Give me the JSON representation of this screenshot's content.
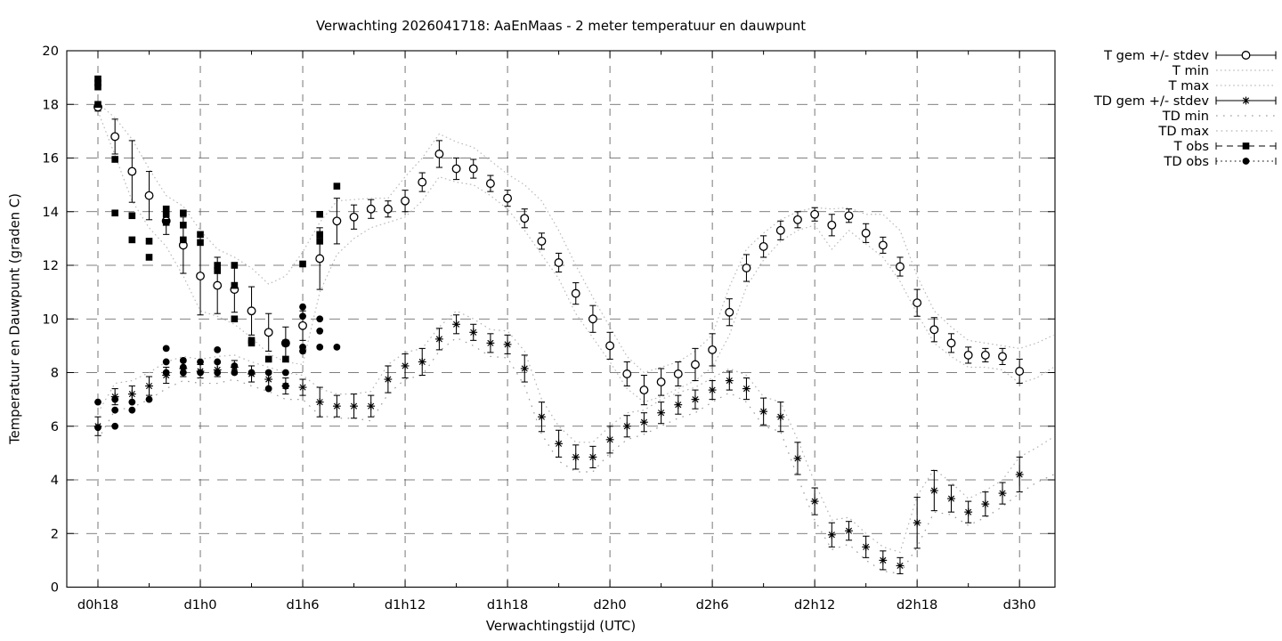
{
  "window": {
    "background": "#ffffff",
    "foreground": "#000000"
  },
  "chart_data": {
    "type": "line",
    "title": "Verwachting 2026041718: AaEnMaas - 2 meter temperatuur en dauwpunt",
    "xlabel": "Verwachtingstijd (UTC)",
    "ylabel": "Temperatuur en Dauwpunt (graden C)",
    "grid": true,
    "legend_position": "outside-right",
    "axes": {
      "x": {
        "range_t": [
          -1.83,
          56.0
        ],
        "ticks": [
          {
            "t": 0,
            "label": "d0h18"
          },
          {
            "t": 6,
            "label": "d1h0"
          },
          {
            "t": 12,
            "label": "d1h6"
          },
          {
            "t": 18,
            "label": "d1h12"
          },
          {
            "t": 24,
            "label": "d1h18"
          },
          {
            "t": 30,
            "label": "d2h0"
          },
          {
            "t": 36,
            "label": "d2h6"
          },
          {
            "t": 42,
            "label": "d2h12"
          },
          {
            "t": 48,
            "label": "d2h18"
          },
          {
            "t": 54,
            "label": "d3h0"
          }
        ],
        "minor_ticks": [
          3,
          9,
          15,
          21,
          27,
          33,
          39,
          45,
          51
        ]
      },
      "y": {
        "min": 0,
        "max": 20,
        "step": 2
      }
    },
    "series": [
      {
        "name": "T gem +/- stdev",
        "type": "errorbar",
        "marker": "circle-open",
        "color": "#000000",
        "t_start": 0,
        "dt": 1,
        "values": [
          17.9,
          16.8,
          15.5,
          14.6,
          13.65,
          12.75,
          11.6,
          11.25,
          11.1,
          10.3,
          9.5,
          9.1,
          9.75,
          12.25,
          13.65,
          13.8,
          14.1,
          14.1,
          14.4,
          15.1,
          16.15,
          15.6,
          15.6,
          15.05,
          14.5,
          13.75,
          12.9,
          12.1,
          10.95,
          10.0,
          9.0,
          7.95,
          7.35,
          7.65,
          7.95,
          8.3,
          8.85,
          10.25,
          11.9,
          12.7,
          13.3,
          13.7,
          13.9,
          13.5,
          13.85,
          13.2,
          12.75,
          11.95,
          10.6,
          9.6,
          9.1,
          8.65,
          8.65,
          8.6,
          8.05
        ],
        "stdev": [
          0.15,
          0.65,
          1.15,
          0.9,
          0.5,
          1.05,
          1.45,
          1.05,
          0.85,
          0.9,
          0.7,
          0.6,
          0.55,
          1.15,
          0.85,
          0.45,
          0.35,
          0.3,
          0.4,
          0.35,
          0.5,
          0.4,
          0.35,
          0.3,
          0.3,
          0.35,
          0.3,
          0.35,
          0.4,
          0.5,
          0.5,
          0.45,
          0.55,
          0.5,
          0.45,
          0.6,
          0.6,
          0.5,
          0.5,
          0.4,
          0.35,
          0.3,
          0.25,
          0.4,
          0.25,
          0.35,
          0.3,
          0.35,
          0.5,
          0.45,
          0.35,
          0.3,
          0.25,
          0.3,
          0.45
        ]
      },
      {
        "name": "T min",
        "type": "line",
        "color": "#bcbcbc",
        "dash": "1.6,3.2",
        "t_start": 0,
        "dt": 1,
        "values": [
          17.75,
          16.1,
          14.4,
          13.4,
          12.7,
          11.6,
          10.3,
          10.1,
          9.8,
          9.3,
          8.7,
          8.4,
          8.3,
          11.0,
          12.4,
          13.0,
          13.4,
          13.6,
          13.8,
          14.4,
          15.3,
          15.1,
          15.0,
          14.6,
          14.1,
          13.3,
          12.4,
          11.5,
          10.2,
          9.3,
          8.4,
          7.4,
          6.9,
          7.1,
          7.4,
          7.7,
          8.2,
          9.4,
          11.2,
          12.2,
          12.9,
          13.3,
          13.5,
          12.6,
          13.3,
          12.8,
          12.3,
          11.4,
          10.2,
          9.1,
          8.6,
          8.2,
          8.2,
          8.1,
          7.6,
          7.8,
          8.2
        ]
      },
      {
        "name": "T max",
        "type": "line",
        "color": "#bcbcbc",
        "dash": "1.6,3.2",
        "t_start": 0,
        "dt": 1,
        "values": [
          18.05,
          17.5,
          16.7,
          15.6,
          14.6,
          14.2,
          13.3,
          12.6,
          12.3,
          11.9,
          11.3,
          11.6,
          12.5,
          13.6,
          14.4,
          14.45,
          14.5,
          14.5,
          15.3,
          16.0,
          16.9,
          16.6,
          16.4,
          15.9,
          15.4,
          15.0,
          14.4,
          13.3,
          12.0,
          10.8,
          9.7,
          8.6,
          8.0,
          8.2,
          8.4,
          8.8,
          9.4,
          11.2,
          12.6,
          13.2,
          13.7,
          14.0,
          14.15,
          14.1,
          14.15,
          13.9,
          13.9,
          13.3,
          11.6,
          10.3,
          9.7,
          9.2,
          9.1,
          9.0,
          8.9,
          9.1,
          9.4
        ]
      },
      {
        "name": "TD gem +/- stdev",
        "type": "errorbar",
        "marker": "asterisk",
        "color": "#000000",
        "t_start": 0,
        "dt": 1,
        "values": [
          6.0,
          7.1,
          7.2,
          7.5,
          7.9,
          8.15,
          8.05,
          8.1,
          8.2,
          7.95,
          7.75,
          7.5,
          7.45,
          6.9,
          6.75,
          6.75,
          6.75,
          7.75,
          8.25,
          8.4,
          9.25,
          9.8,
          9.5,
          9.1,
          9.05,
          8.15,
          6.35,
          5.35,
          4.85,
          4.85,
          5.5,
          6.0,
          6.15,
          6.5,
          6.8,
          7.0,
          7.35,
          7.7,
          7.4,
          6.55,
          6.35,
          4.8,
          3.2,
          1.95,
          2.1,
          1.5,
          1.0,
          0.8,
          2.4,
          3.6,
          3.3,
          2.8,
          3.1,
          3.5,
          4.2
        ],
        "stdev": [
          0.35,
          0.3,
          0.3,
          0.35,
          0.3,
          0.3,
          0.25,
          0.25,
          0.25,
          0.3,
          0.3,
          0.3,
          0.3,
          0.55,
          0.4,
          0.45,
          0.4,
          0.5,
          0.45,
          0.5,
          0.4,
          0.35,
          0.3,
          0.35,
          0.35,
          0.5,
          0.55,
          0.5,
          0.45,
          0.4,
          0.5,
          0.4,
          0.35,
          0.4,
          0.35,
          0.35,
          0.35,
          0.35,
          0.4,
          0.5,
          0.55,
          0.6,
          0.5,
          0.45,
          0.35,
          0.4,
          0.35,
          0.3,
          0.95,
          0.75,
          0.5,
          0.4,
          0.45,
          0.4,
          0.65
        ]
      },
      {
        "name": "TD min",
        "type": "line",
        "color": "#9c9c9c",
        "dash": "1.6,6.4",
        "t_start": 0,
        "dt": 1,
        "values": [
          5.5,
          6.6,
          6.7,
          7.0,
          7.4,
          7.7,
          7.6,
          7.6,
          7.75,
          7.5,
          7.3,
          7.0,
          7.0,
          6.4,
          6.3,
          6.3,
          6.2,
          7.2,
          7.75,
          7.9,
          8.8,
          9.3,
          9.0,
          8.6,
          8.55,
          7.5,
          5.7,
          4.7,
          4.3,
          4.3,
          5.0,
          5.5,
          5.7,
          6.0,
          6.3,
          6.5,
          6.9,
          7.25,
          6.9,
          6.0,
          5.8,
          4.1,
          2.5,
          1.4,
          1.6,
          1.0,
          0.6,
          0.5,
          1.5,
          2.8,
          2.7,
          2.3,
          2.6,
          3.0,
          3.5,
          3.9,
          4.2
        ]
      },
      {
        "name": "TD max",
        "type": "line",
        "color": "#b4b4b4",
        "dash": "1.6,4",
        "t_start": 0,
        "dt": 1,
        "values": [
          6.5,
          7.6,
          7.7,
          8.0,
          8.4,
          8.6,
          8.5,
          8.6,
          8.65,
          8.4,
          8.2,
          8.0,
          7.9,
          7.4,
          7.2,
          7.2,
          7.3,
          8.3,
          8.75,
          8.9,
          9.7,
          10.3,
          10.0,
          9.6,
          9.55,
          8.8,
          7.0,
          6.0,
          5.4,
          5.4,
          6.0,
          6.5,
          6.6,
          7.0,
          7.25,
          7.45,
          7.8,
          8.15,
          7.9,
          7.1,
          6.9,
          5.5,
          3.9,
          2.5,
          2.6,
          2.0,
          1.5,
          1.3,
          3.4,
          4.4,
          3.9,
          3.3,
          3.6,
          4.0,
          4.85,
          5.2,
          5.6
        ]
      },
      {
        "name": "T obs",
        "type": "scatter",
        "marker": "square-filled",
        "color": "#000000",
        "legend_dash": "7,5",
        "points": [
          [
            0,
            18.95
          ],
          [
            0,
            18.8
          ],
          [
            0,
            18.65
          ],
          [
            0,
            18.0
          ],
          [
            1,
            15.95
          ],
          [
            1,
            13.95
          ],
          [
            2,
            13.85
          ],
          [
            2,
            12.95
          ],
          [
            3,
            12.9
          ],
          [
            3,
            12.3
          ],
          [
            4,
            14.1
          ],
          [
            4,
            13.9
          ],
          [
            4,
            13.6
          ],
          [
            5,
            13.95
          ],
          [
            5,
            13.5
          ],
          [
            5,
            12.95
          ],
          [
            6,
            13.15
          ],
          [
            6,
            12.85
          ],
          [
            7,
            12.0
          ],
          [
            7,
            11.8
          ],
          [
            8,
            12.0
          ],
          [
            8,
            11.25
          ],
          [
            8,
            10.0
          ],
          [
            9,
            9.2
          ],
          [
            9,
            9.1
          ],
          [
            10,
            8.5
          ],
          [
            11,
            9.1
          ],
          [
            11,
            8.5
          ],
          [
            12,
            12.05
          ],
          [
            13,
            13.9
          ],
          [
            13,
            13.15
          ],
          [
            13,
            12.9
          ],
          [
            14,
            14.95
          ]
        ]
      },
      {
        "name": "TD obs",
        "type": "scatter",
        "marker": "circle-filled",
        "color": "#000000",
        "legend_dash": "1.6,3.6",
        "points": [
          [
            0,
            6.9
          ],
          [
            0,
            5.95
          ],
          [
            1,
            7.0
          ],
          [
            1,
            6.6
          ],
          [
            1,
            6.0
          ],
          [
            2,
            6.9
          ],
          [
            2,
            6.6
          ],
          [
            3,
            7.0
          ],
          [
            4,
            8.9
          ],
          [
            4,
            8.4
          ],
          [
            4,
            8.0
          ],
          [
            5,
            8.45
          ],
          [
            5,
            8.2
          ],
          [
            5,
            8.0
          ],
          [
            6,
            8.4
          ],
          [
            6,
            8.0
          ],
          [
            7,
            8.85
          ],
          [
            7,
            8.4
          ],
          [
            7,
            8.0
          ],
          [
            8,
            8.25
          ],
          [
            8,
            8.0
          ],
          [
            9,
            8.0
          ],
          [
            10,
            8.0
          ],
          [
            10,
            7.4
          ],
          [
            11,
            8.0
          ],
          [
            11,
            7.5
          ],
          [
            12,
            10.45
          ],
          [
            12,
            10.1
          ],
          [
            12,
            8.95
          ],
          [
            12,
            8.8
          ],
          [
            13,
            10.0
          ],
          [
            13,
            9.55
          ],
          [
            13,
            8.95
          ],
          [
            14,
            8.95
          ]
        ]
      }
    ],
    "y_tick_labels": [
      "0",
      "2",
      "4",
      "6",
      "8",
      "10",
      "12",
      "14",
      "16",
      "18",
      "20"
    ]
  }
}
